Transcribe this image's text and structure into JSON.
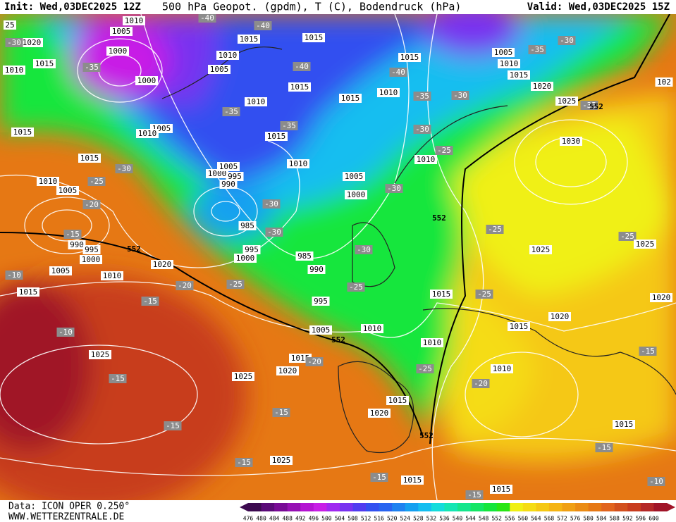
{
  "header": {
    "init": "Init: Wed,03DEC2025 12Z",
    "title": "500 hPa Geopot. (gpdm), T (C), Bodendruck (hPa)",
    "valid": "Valid: Wed,03DEC2025 15Z"
  },
  "footer": {
    "data": "Data: ICON OPER 0.250°",
    "site": "WWW.WETTERZENTRALE.DE"
  },
  "colorbar": {
    "values": [
      476,
      480,
      484,
      488,
      492,
      496,
      500,
      504,
      508,
      512,
      516,
      520,
      524,
      528,
      532,
      536,
      540,
      544,
      548,
      552,
      556,
      560,
      564,
      568,
      572,
      576,
      580,
      584,
      588,
      592,
      596,
      600
    ],
    "colors": [
      "#3c0a50",
      "#5a0a78",
      "#780a96",
      "#9610b4",
      "#b414d2",
      "#c81ee6",
      "#a028f0",
      "#7832f0",
      "#503cf0",
      "#3250f0",
      "#2864f0",
      "#1e82f0",
      "#14a0f0",
      "#14bef0",
      "#14dcdc",
      "#14e6b4",
      "#14e68c",
      "#14e664",
      "#14e63c",
      "#28e614",
      "#f0f014",
      "#f5dc14",
      "#f5c814",
      "#f5b414",
      "#f0a014",
      "#eb8c14",
      "#e67814",
      "#e1641e",
      "#d2501e",
      "#c83c1e",
      "#b42828",
      "#a01428"
    ]
  },
  "map_labels": [
    "1010",
    "1005",
    "1000",
    "1000",
    "1010",
    "1020",
    "1015",
    "-35",
    "1005",
    "1010",
    "1015",
    "1015",
    "1010",
    "1005",
    "-25",
    "-30",
    "-20",
    "-15",
    "990",
    "995",
    "1000",
    "1005",
    "1010",
    "-10",
    "1015",
    "1020",
    "-20",
    "-15",
    "-10",
    "1025",
    "-15",
    "1025",
    "1020",
    "1015",
    "1005",
    "1010",
    "995",
    "990",
    "985",
    "985",
    "995",
    "1000",
    "-30",
    "-30",
    "-25",
    "1000",
    "1005",
    "995",
    "990",
    "1010",
    "1005",
    "1000",
    "-30",
    "-25",
    "1015",
    "-35",
    "1010",
    "-35",
    "1015",
    "1005",
    "1010",
    "1015",
    "1015",
    "-40",
    "-40",
    "-40",
    "1010",
    "1015",
    "-40",
    "1015",
    "-35",
    "-30",
    "-30",
    "-25",
    "1010",
    "-30",
    "552",
    "-25",
    "1015",
    "-25",
    "1010",
    "-25",
    "1015",
    "1020",
    "552",
    "1010",
    "-20",
    "1015",
    "1020",
    "1025",
    "-25",
    "1025",
    "1020",
    "-15",
    "1015",
    "-15",
    "-10",
    "1015",
    "-15",
    "1015",
    "-15",
    "1025",
    "-15",
    "-15",
    "-15",
    "-20",
    "552",
    "552",
    "1030",
    "1025",
    "-35",
    "552",
    "1020",
    "1015",
    "1010",
    "1005",
    "-35",
    "-30",
    "102",
    "25",
    "-30"
  ]
}
